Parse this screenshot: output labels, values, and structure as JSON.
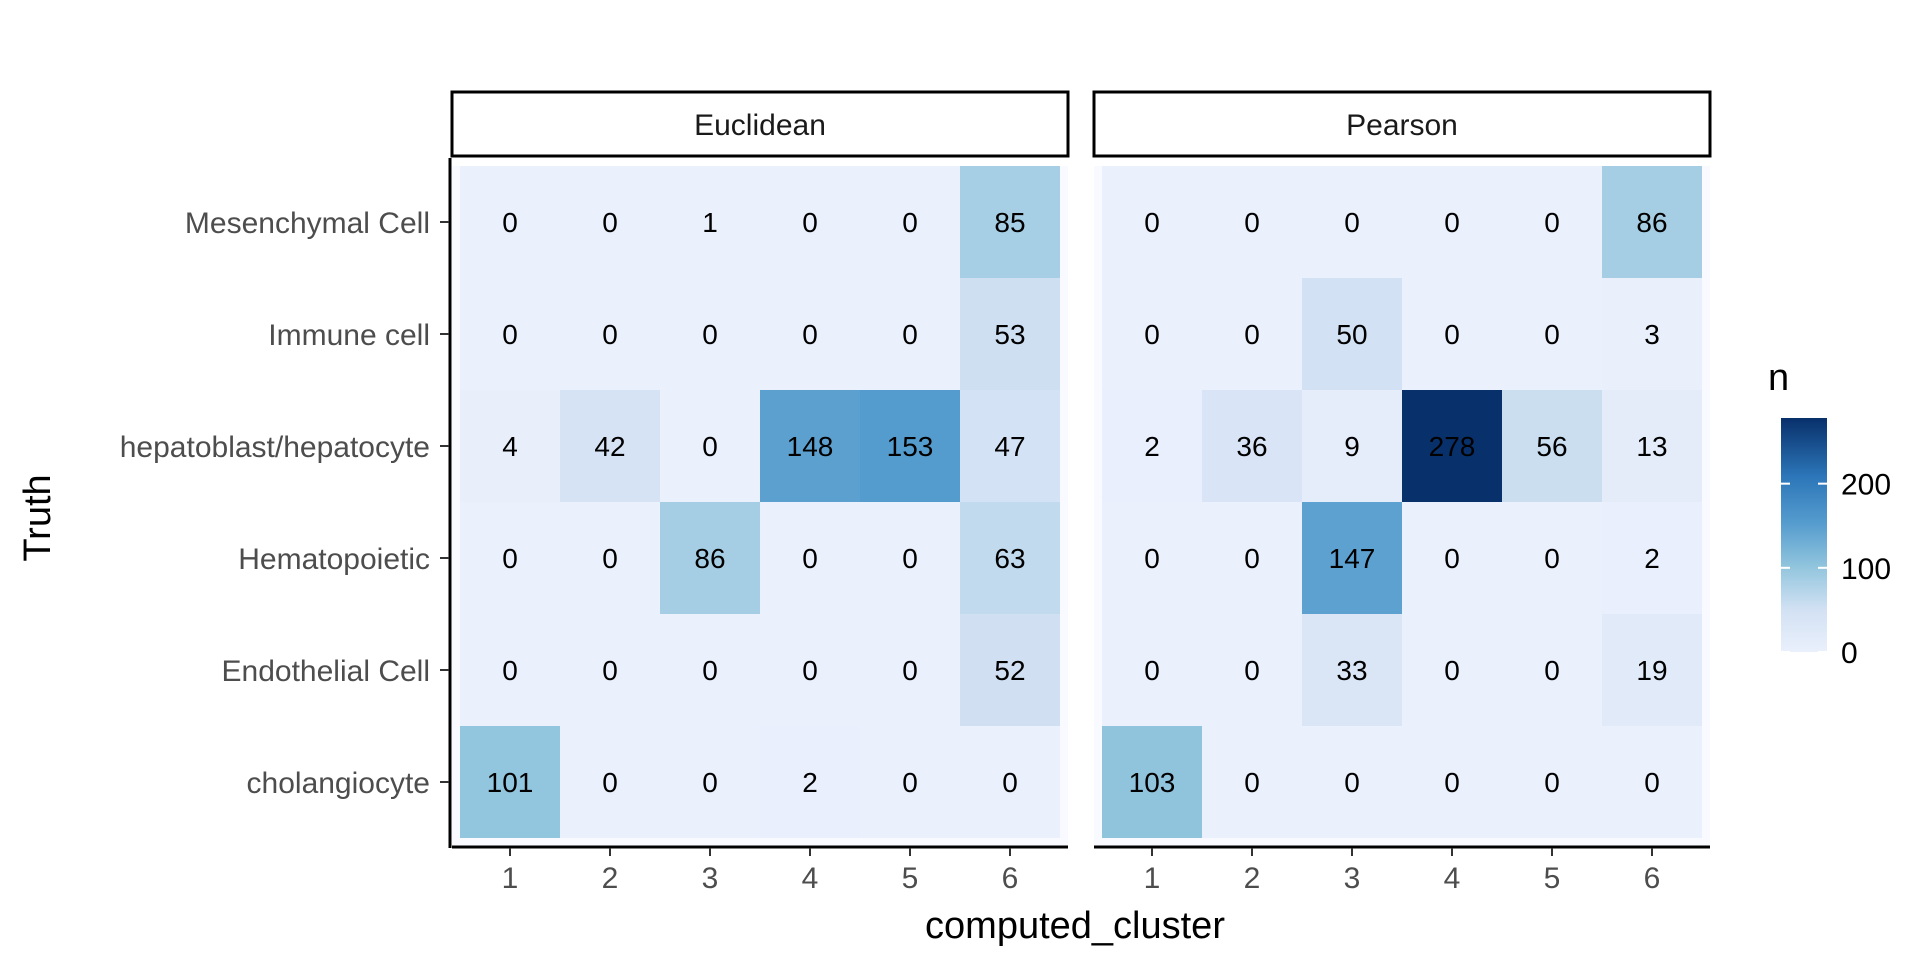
{
  "chart_data": {
    "type": "heatmap",
    "xlabel": "computed_cluster",
    "ylabel": "Truth",
    "x_categories": [
      "1",
      "2",
      "3",
      "4",
      "5",
      "6"
    ],
    "y_categories": [
      "Mesenchymal Cell",
      "Immune cell",
      "hepatoblast/hepatocyte",
      "Hematopoietic",
      "Endothelial Cell",
      "cholangiocyte"
    ],
    "legend": {
      "title": "n",
      "ticks": [
        "0",
        "100",
        "200"
      ],
      "tick_values": [
        0,
        100,
        200
      ],
      "range": [
        0,
        278
      ],
      "placement": "right",
      "color_low": "#f7fbff",
      "color_high": "#08306b"
    },
    "panels": [
      {
        "title": "Euclidean",
        "values": [
          [
            0,
            0,
            1,
            0,
            0,
            85
          ],
          [
            0,
            0,
            0,
            0,
            0,
            53
          ],
          [
            4,
            42,
            0,
            148,
            153,
            47
          ],
          [
            0,
            0,
            86,
            0,
            0,
            63
          ],
          [
            0,
            0,
            0,
            0,
            0,
            52
          ],
          [
            101,
            0,
            0,
            2,
            0,
            0
          ]
        ]
      },
      {
        "title": "Pearson",
        "values": [
          [
            0,
            0,
            0,
            0,
            0,
            86
          ],
          [
            0,
            0,
            50,
            0,
            0,
            3
          ],
          [
            2,
            36,
            9,
            278,
            56,
            13
          ],
          [
            0,
            0,
            147,
            0,
            0,
            2
          ],
          [
            0,
            0,
            33,
            0,
            0,
            19
          ],
          [
            103,
            0,
            0,
            0,
            0,
            0
          ]
        ]
      }
    ]
  }
}
